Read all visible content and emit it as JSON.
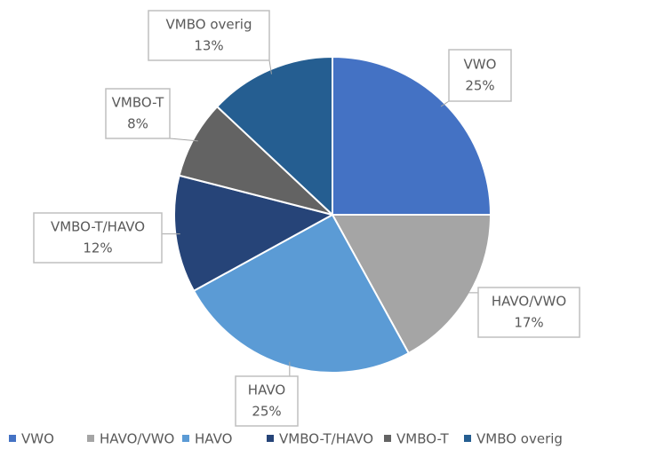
{
  "chart_data": {
    "type": "pie",
    "categories": [
      "VWO",
      "HAVO/VWO",
      "HAVO",
      "VMBO-T/HAVO",
      "VMBO-T",
      "VMBO overig"
    ],
    "values": [
      25,
      17,
      25,
      12,
      8,
      13
    ],
    "value_labels": [
      "25%",
      "17%",
      "25%",
      "12%",
      "8%",
      "13%"
    ],
    "colors": [
      "#4472c4",
      "#a5a5a5",
      "#5b9bd5",
      "#264478",
      "#636363",
      "#255e91"
    ],
    "legend": "bottom"
  }
}
